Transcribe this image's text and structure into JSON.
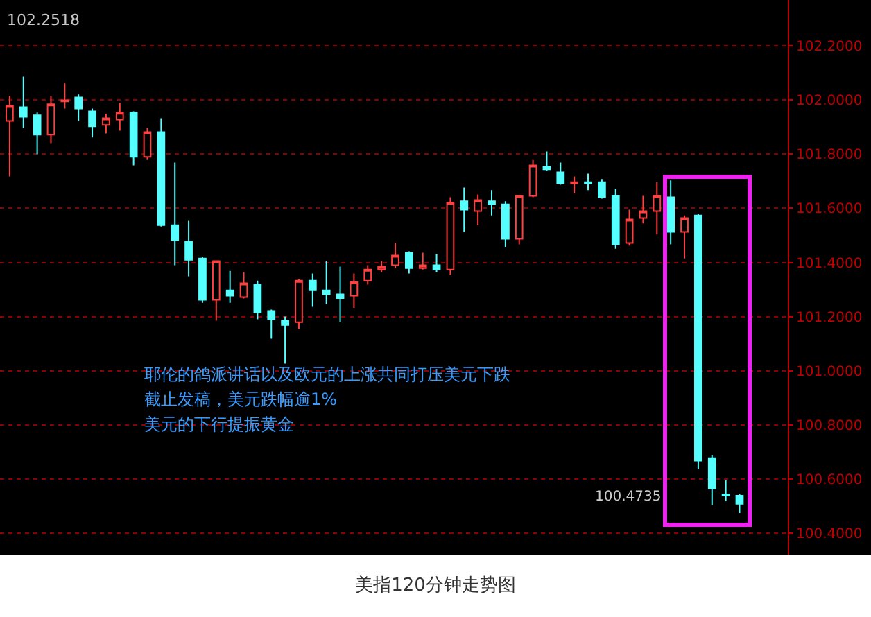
{
  "chart_data": {
    "type": "candlestick",
    "title": "美指120分钟走势图",
    "categories": [
      null,
      null,
      null,
      null,
      null,
      null,
      null,
      null,
      null,
      null,
      null,
      null,
      null,
      null,
      null,
      null,
      null,
      null,
      null,
      null,
      null,
      null,
      null,
      null,
      null,
      null,
      null,
      null,
      null,
      null,
      null,
      null,
      null,
      null,
      null,
      null,
      null,
      null,
      null,
      null,
      null,
      null,
      null,
      null,
      null,
      null,
      null,
      null,
      null,
      null,
      null,
      null,
      null,
      null
    ],
    "ohlc": [
      [
        101.923,
        102.015,
        101.718,
        101.979
      ],
      [
        101.974,
        102.087,
        101.897,
        101.938
      ],
      [
        101.944,
        101.954,
        101.8,
        101.872
      ],
      [
        101.872,
        102.015,
        101.841,
        101.985
      ],
      [
        101.995,
        102.062,
        101.969,
        102.0
      ],
      [
        102.01,
        102.021,
        101.923,
        101.969
      ],
      [
        101.959,
        101.969,
        101.862,
        101.903
      ],
      [
        101.908,
        101.949,
        101.877,
        101.933
      ],
      [
        101.928,
        101.99,
        101.887,
        101.954
      ],
      [
        101.954,
        101.959,
        101.759,
        101.79
      ],
      [
        101.79,
        101.897,
        101.779,
        101.882
      ],
      [
        101.882,
        101.933,
        101.533,
        101.538
      ],
      [
        101.538,
        101.769,
        101.39,
        101.482
      ],
      [
        101.477,
        101.554,
        101.349,
        101.41
      ],
      [
        101.415,
        101.421,
        101.251,
        101.262
      ],
      [
        101.262,
        101.405,
        101.185,
        101.405
      ],
      [
        101.297,
        101.369,
        101.251,
        101.277
      ],
      [
        101.272,
        101.364,
        101.267,
        101.323
      ],
      [
        101.318,
        101.333,
        101.19,
        101.215
      ],
      [
        101.221,
        101.226,
        101.118,
        101.19
      ],
      [
        101.185,
        101.2,
        101.026,
        101.169
      ],
      [
        101.179,
        101.338,
        101.154,
        101.333
      ],
      [
        101.333,
        101.359,
        101.236,
        101.297
      ],
      [
        101.297,
        101.405,
        101.246,
        101.282
      ],
      [
        101.282,
        101.385,
        101.179,
        101.267
      ],
      [
        101.277,
        101.359,
        101.231,
        101.328
      ],
      [
        101.333,
        101.39,
        101.318,
        101.374
      ],
      [
        101.374,
        101.405,
        101.364,
        101.385
      ],
      [
        101.39,
        101.472,
        101.379,
        101.426
      ],
      [
        101.436,
        101.441,
        101.359,
        101.379
      ],
      [
        101.379,
        101.436,
        101.374,
        101.39
      ],
      [
        101.39,
        101.431,
        101.364,
        101.374
      ],
      [
        101.374,
        101.641,
        101.354,
        101.621
      ],
      [
        101.626,
        101.677,
        101.513,
        101.595
      ],
      [
        101.59,
        101.651,
        101.538,
        101.631
      ],
      [
        101.626,
        101.667,
        101.574,
        101.615
      ],
      [
        101.615,
        101.626,
        101.456,
        101.487
      ],
      [
        101.487,
        101.646,
        101.467,
        101.646
      ],
      [
        101.646,
        101.779,
        101.641,
        101.759
      ],
      [
        101.754,
        101.81,
        101.738,
        101.744
      ],
      [
        101.733,
        101.769,
        101.687,
        101.692
      ],
      [
        101.692,
        101.718,
        101.656,
        101.697
      ],
      [
        101.697,
        101.728,
        101.667,
        101.692
      ],
      [
        101.697,
        101.708,
        101.636,
        101.641
      ],
      [
        101.646,
        101.672,
        101.451,
        101.467
      ],
      [
        101.472,
        101.595,
        101.462,
        101.559
      ],
      [
        101.564,
        101.646,
        101.544,
        101.59
      ],
      [
        101.59,
        101.697,
        101.503,
        101.646
      ],
      [
        101.641,
        101.703,
        101.467,
        101.513
      ],
      [
        101.513,
        101.574,
        101.415,
        101.564
      ],
      [
        101.574,
        101.579,
        100.636,
        100.667
      ],
      [
        100.677,
        100.687,
        100.503,
        100.564
      ],
      [
        100.543,
        100.595,
        100.518,
        100.538
      ],
      [
        100.538,
        100.543,
        100.4735,
        100.508
      ]
    ],
    "colors": [
      "#ff4040",
      "#55ffff",
      "#55ffff",
      "#ff4040",
      "#ff4040",
      "#55ffff",
      "#55ffff",
      "#ff4040",
      "#ff4040",
      "#55ffff",
      "#ff4040",
      "#55ffff",
      "#55ffff",
      "#55ffff",
      "#55ffff",
      "#ff4040",
      "#55ffff",
      "#ff4040",
      "#55ffff",
      "#55ffff",
      "#55ffff",
      "#ff4040",
      "#55ffff",
      "#55ffff",
      "#55ffff",
      "#ff4040",
      "#ff4040",
      "#ff4040",
      "#ff4040",
      "#55ffff",
      "#ff4040",
      "#55ffff",
      "#ff4040",
      "#55ffff",
      "#ff4040",
      "#55ffff",
      "#55ffff",
      "#ff4040",
      "#ff4040",
      "#55ffff",
      "#55ffff",
      "#ff4040",
      "#55ffff",
      "#55ffff",
      "#55ffff",
      "#ff4040",
      "#ff4040",
      "#ff4040",
      "#55ffff",
      "#ff4040",
      "#55ffff",
      "#55ffff",
      "#55ffff",
      "#55ffff"
    ],
    "ylim": [
      100.32,
      102.37
    ],
    "yticks": [
      {
        "value": 100.4,
        "label": "100.4000"
      },
      {
        "value": 100.6,
        "label": "100.6000"
      },
      {
        "value": 100.8,
        "label": "100.8000"
      },
      {
        "value": 101.0,
        "label": "101.0000"
      },
      {
        "value": 101.2,
        "label": "101.2000"
      },
      {
        "value": 101.4,
        "label": "101.4000"
      },
      {
        "value": 101.6,
        "label": "101.6000"
      },
      {
        "value": 101.8,
        "label": "101.8000"
      },
      {
        "value": 102.0,
        "label": "102.0000"
      },
      {
        "value": 102.2,
        "label": "102.2000"
      }
    ],
    "grid": "y",
    "annotations": [
      "102.2518",
      "耶伦的鸽派讲话以及欧元的上涨共同打压美元下跌",
      "截止发稿，美元跌幅逾1%",
      "美元的下行提振黄金",
      "100.4735"
    ]
  }
}
